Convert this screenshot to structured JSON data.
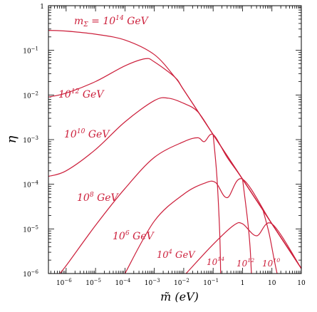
{
  "chart_data": {
    "type": "line",
    "xscale": "log",
    "yscale": "log",
    "xlim": [
      2.5e-07,
      100
    ],
    "ylim": [
      1e-06,
      1
    ],
    "xlabel": "m̃ (eV)",
    "ylabel": "η",
    "x_ticks": [
      {
        "value": 1e-06,
        "base": "10",
        "exp": "−6"
      },
      {
        "value": 1e-05,
        "base": "10",
        "exp": "−5"
      },
      {
        "value": 0.0001,
        "base": "10",
        "exp": "−4"
      },
      {
        "value": 0.001,
        "base": "10",
        "exp": "−3"
      },
      {
        "value": 0.01,
        "base": "10",
        "exp": "−2"
      },
      {
        "value": 0.1,
        "base": "10",
        "exp": "−1"
      },
      {
        "value": 1,
        "base": "1",
        "exp": ""
      },
      {
        "value": 10,
        "base": "10",
        "exp": ""
      },
      {
        "value": 100,
        "base": "10",
        "exp": ""
      }
    ],
    "y_ticks": [
      {
        "value": 1,
        "base": "1",
        "exp": ""
      },
      {
        "value": 0.1,
        "base": "10",
        "exp": "−1"
      },
      {
        "value": 0.01,
        "base": "10",
        "exp": "−2"
      },
      {
        "value": 0.001,
        "base": "10",
        "exp": "−3"
      },
      {
        "value": 0.0001,
        "base": "10",
        "exp": "−4"
      },
      {
        "value": 1e-05,
        "base": "10",
        "exp": "−5"
      },
      {
        "value": 1e-06,
        "base": "10",
        "exp": "−6"
      }
    ],
    "line_color": "#cc1f3b",
    "series": [
      {
        "points": [
          [
            2.5e-07,
            0.28
          ],
          [
            1e-06,
            0.27
          ],
          [
            1e-05,
            0.23
          ],
          [
            0.0001,
            0.17
          ],
          [
            0.001,
            0.08
          ],
          [
            0.005,
            0.025
          ],
          [
            0.01,
            0.013
          ],
          [
            0.1,
            0.0013
          ],
          [
            1,
            0.00013
          ],
          [
            10,
            1.3e-05
          ],
          [
            100,
            1.3e-06
          ]
        ]
      },
      {
        "points": [
          [
            2.5e-07,
            0.009
          ],
          [
            1e-06,
            0.011
          ],
          [
            1e-05,
            0.02
          ],
          [
            0.0001,
            0.045
          ],
          [
            0.0005,
            0.065
          ],
          [
            0.001,
            0.055
          ],
          [
            0.005,
            0.025
          ],
          [
            0.01,
            0.013
          ],
          [
            0.1,
            0.0013
          ],
          [
            1,
            0.00013
          ],
          [
            10,
            1.3e-05
          ],
          [
            100,
            1.3e-06
          ]
        ]
      },
      {
        "points": [
          [
            2.5e-07,
            0.00015
          ],
          [
            1e-06,
            0.0002
          ],
          [
            1e-05,
            0.0006
          ],
          [
            0.0001,
            0.0025
          ],
          [
            0.001,
            0.0075
          ],
          [
            0.003,
            0.0085
          ],
          [
            0.01,
            0.0065
          ],
          [
            0.03,
            0.0042
          ],
          [
            0.1,
            0.0013
          ],
          [
            1,
            0.00013
          ],
          [
            10,
            1.3e-05
          ],
          [
            100,
            1.3e-06
          ]
        ]
      },
      {
        "points": [
          [
            6e-07,
            1e-06
          ],
          [
            1e-06,
            1.5e-06
          ],
          [
            1e-05,
            1.2e-05
          ],
          [
            0.0001,
            8e-05
          ],
          [
            0.001,
            0.0004
          ],
          [
            0.01,
            0.0009
          ],
          [
            0.03,
            0.0011
          ],
          [
            0.05,
            0.0009
          ],
          [
            0.1,
            0.0013
          ],
          [
            0.3,
            0.0004
          ],
          [
            1,
            0.00013
          ],
          [
            10,
            1.3e-05
          ],
          [
            100,
            1.3e-06
          ]
        ]
      },
      {
        "points": [
          [
            0.0001,
            1e-06
          ],
          [
            0.001,
            1.5e-05
          ],
          [
            0.01,
            6e-05
          ],
          [
            0.05,
            0.000105
          ],
          [
            0.12,
            0.00011
          ],
          [
            0.3,
            5e-05
          ],
          [
            1,
            0.00013
          ],
          [
            10,
            1.3e-05
          ],
          [
            100,
            1.3e-06
          ]
        ]
      },
      {
        "points": [
          [
            0.012,
            1e-06
          ],
          [
            0.1,
            4.5e-06
          ],
          [
            0.5,
            1.2e-05
          ],
          [
            1,
            1.3e-05
          ],
          [
            3,
            7e-06
          ],
          [
            10,
            1.3e-05
          ],
          [
            100,
            1.3e-06
          ]
        ]
      },
      {
        "points": [
          [
            0.1,
            0.0013
          ],
          [
            0.13,
            0.0002
          ],
          [
            0.15,
            4e-05
          ],
          [
            0.17,
            6e-06
          ],
          [
            0.18,
            1e-06
          ]
        ]
      },
      {
        "points": [
          [
            1,
            0.00013
          ],
          [
            1.5,
            1.5e-05
          ],
          [
            1.8,
            4e-06
          ],
          [
            2,
            1e-06
          ]
        ]
      },
      {
        "points": [
          [
            5,
            2.6e-05
          ],
          [
            8,
            8e-06
          ],
          [
            12,
            2e-06
          ],
          [
            15,
            1e-06
          ]
        ]
      }
    ],
    "annotations": [
      {
        "text": "m",
        "sub": "Σ",
        "mid": " = 10",
        "sup": "14",
        "tail": " GeV"
      },
      {
        "text": "10",
        "sup": "12",
        "tail": " GeV"
      },
      {
        "text": "10",
        "sup": "10",
        "tail": " GeV"
      },
      {
        "text": "10",
        "sup": "8",
        "tail": " GeV"
      },
      {
        "text": "10",
        "sup": "6",
        "tail": " GeV"
      },
      {
        "text": "10",
        "sup": "4",
        "tail": " GeV"
      },
      {
        "text": "10",
        "sup": "14",
        "tail": ""
      },
      {
        "text": "10",
        "sup": "12",
        "tail": ""
      },
      {
        "text": "10",
        "sup": "10",
        "tail": ""
      }
    ]
  }
}
